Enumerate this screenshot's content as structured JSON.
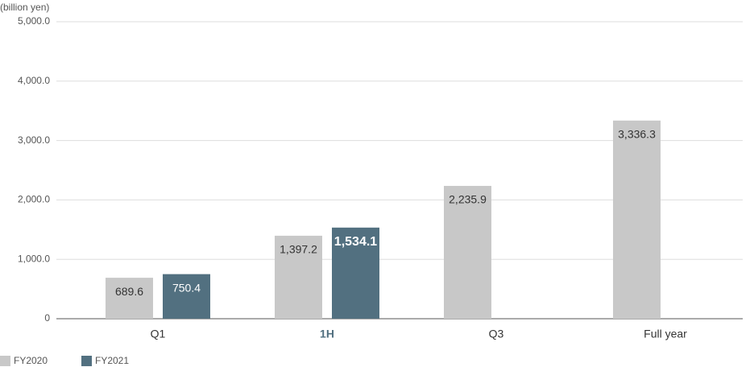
{
  "chart_data": {
    "type": "bar",
    "y_label": "(billion yen)",
    "categories": [
      "Q1",
      "1H",
      "Q3",
      "Full year"
    ],
    "highlighted_category": "1H",
    "series": [
      {
        "name": "FY2020",
        "color": "#c8c8c8",
        "values": [
          689.6,
          1397.2,
          2235.9,
          3336.3
        ],
        "value_labels": [
          "689.6",
          "1,397.2",
          "2,235.9",
          "3,336.3"
        ]
      },
      {
        "name": "FY2021",
        "color": "#527080",
        "values": [
          750.4,
          1534.1,
          null,
          null
        ],
        "value_labels": [
          "750.4",
          "1,534.1",
          null,
          null
        ]
      }
    ],
    "ylim": [
      0,
      5000
    ],
    "yticks": [
      0,
      {
        "value": 1000,
        "label": "1,000.0"
      },
      {
        "value": 2000,
        "label": "2,000.0"
      },
      {
        "value": 3000,
        "label": "3,000.0"
      },
      {
        "value": 4000,
        "label": "4,000.0"
      },
      {
        "value": 5000,
        "label": "5,000.0"
      }
    ],
    "grid": true,
    "legend": "bottom-left"
  }
}
